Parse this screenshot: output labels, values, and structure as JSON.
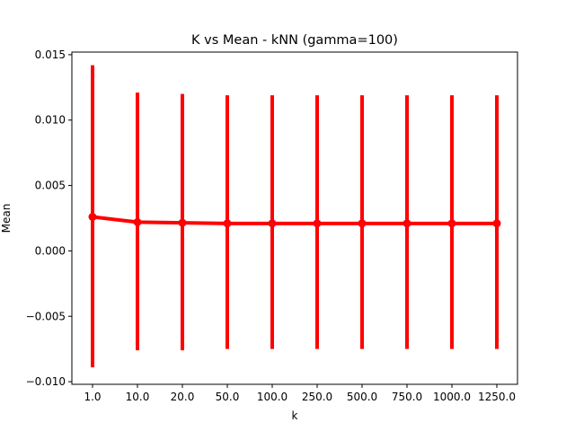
{
  "chart_data": {
    "type": "line",
    "title": "K vs Mean - kNN (gamma=100)",
    "xlabel": "k",
    "ylabel": "Mean",
    "categories": [
      "1.0",
      "10.0",
      "20.0",
      "50.0",
      "100.0",
      "250.0",
      "500.0",
      "750.0",
      "1000.0",
      "1250.0"
    ],
    "series": [
      {
        "values": [
          0.0026,
          0.0022,
          0.00215,
          0.0021,
          0.0021,
          0.0021,
          0.0021,
          0.0021,
          0.0021,
          0.0021
        ],
        "err_low": [
          -0.0089,
          -0.0076,
          -0.0076,
          -0.0075,
          -0.0075,
          -0.0075,
          -0.0075,
          -0.0075,
          -0.0075,
          -0.0075
        ],
        "err_high": [
          0.0142,
          0.0121,
          0.012,
          0.0119,
          0.0119,
          0.0119,
          0.0119,
          0.0119,
          0.0119,
          0.0119
        ],
        "color": "#ff0000"
      }
    ],
    "ylim": [
      -0.0102,
      0.0152
    ],
    "yticks": [
      -0.01,
      -0.005,
      0.0,
      0.005,
      0.01,
      0.015
    ],
    "ytick_labels": [
      "−0.010",
      "−0.005",
      "0.000",
      "0.005",
      "0.010",
      "0.015"
    ],
    "grid": false,
    "legend": "none"
  }
}
